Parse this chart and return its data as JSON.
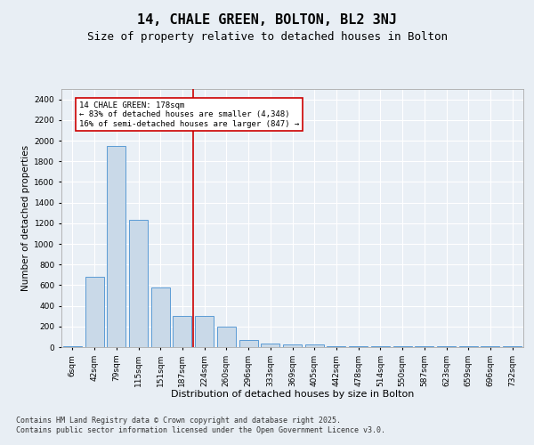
{
  "title1": "14, CHALE GREEN, BOLTON, BL2 3NJ",
  "title2": "Size of property relative to detached houses in Bolton",
  "xlabel": "Distribution of detached houses by size in Bolton",
  "ylabel": "Number of detached properties",
  "categories": [
    "6sqm",
    "42sqm",
    "79sqm",
    "115sqm",
    "151sqm",
    "187sqm",
    "224sqm",
    "260sqm",
    "296sqm",
    "333sqm",
    "369sqm",
    "405sqm",
    "442sqm",
    "478sqm",
    "514sqm",
    "550sqm",
    "587sqm",
    "623sqm",
    "659sqm",
    "696sqm",
    "732sqm"
  ],
  "values": [
    5,
    680,
    1950,
    1230,
    580,
    300,
    300,
    200,
    70,
    35,
    25,
    25,
    10,
    5,
    5,
    5,
    5,
    5,
    5,
    5,
    10
  ],
  "bar_color": "#c9d9e8",
  "bar_edge_color": "#5b9bd5",
  "ylim": [
    0,
    2500
  ],
  "yticks": [
    0,
    200,
    400,
    600,
    800,
    1000,
    1200,
    1400,
    1600,
    1800,
    2000,
    2200,
    2400
  ],
  "property_line_x": 5.5,
  "property_line_color": "#cc0000",
  "annotation_text": "14 CHALE GREEN: 178sqm\n← 83% of detached houses are smaller (4,348)\n16% of semi-detached houses are larger (847) →",
  "annotation_box_color": "#cc0000",
  "footer_text": "Contains HM Land Registry data © Crown copyright and database right 2025.\nContains public sector information licensed under the Open Government Licence v3.0.",
  "bg_color": "#e8eef4",
  "plot_bg_color": "#eaf0f6",
  "grid_color": "#ffffff",
  "title_fontsize": 11,
  "subtitle_fontsize": 9,
  "tick_fontsize": 6.5,
  "ylabel_fontsize": 7.5,
  "xlabel_fontsize": 8,
  "footer_fontsize": 6,
  "ann_fontsize": 6.5
}
